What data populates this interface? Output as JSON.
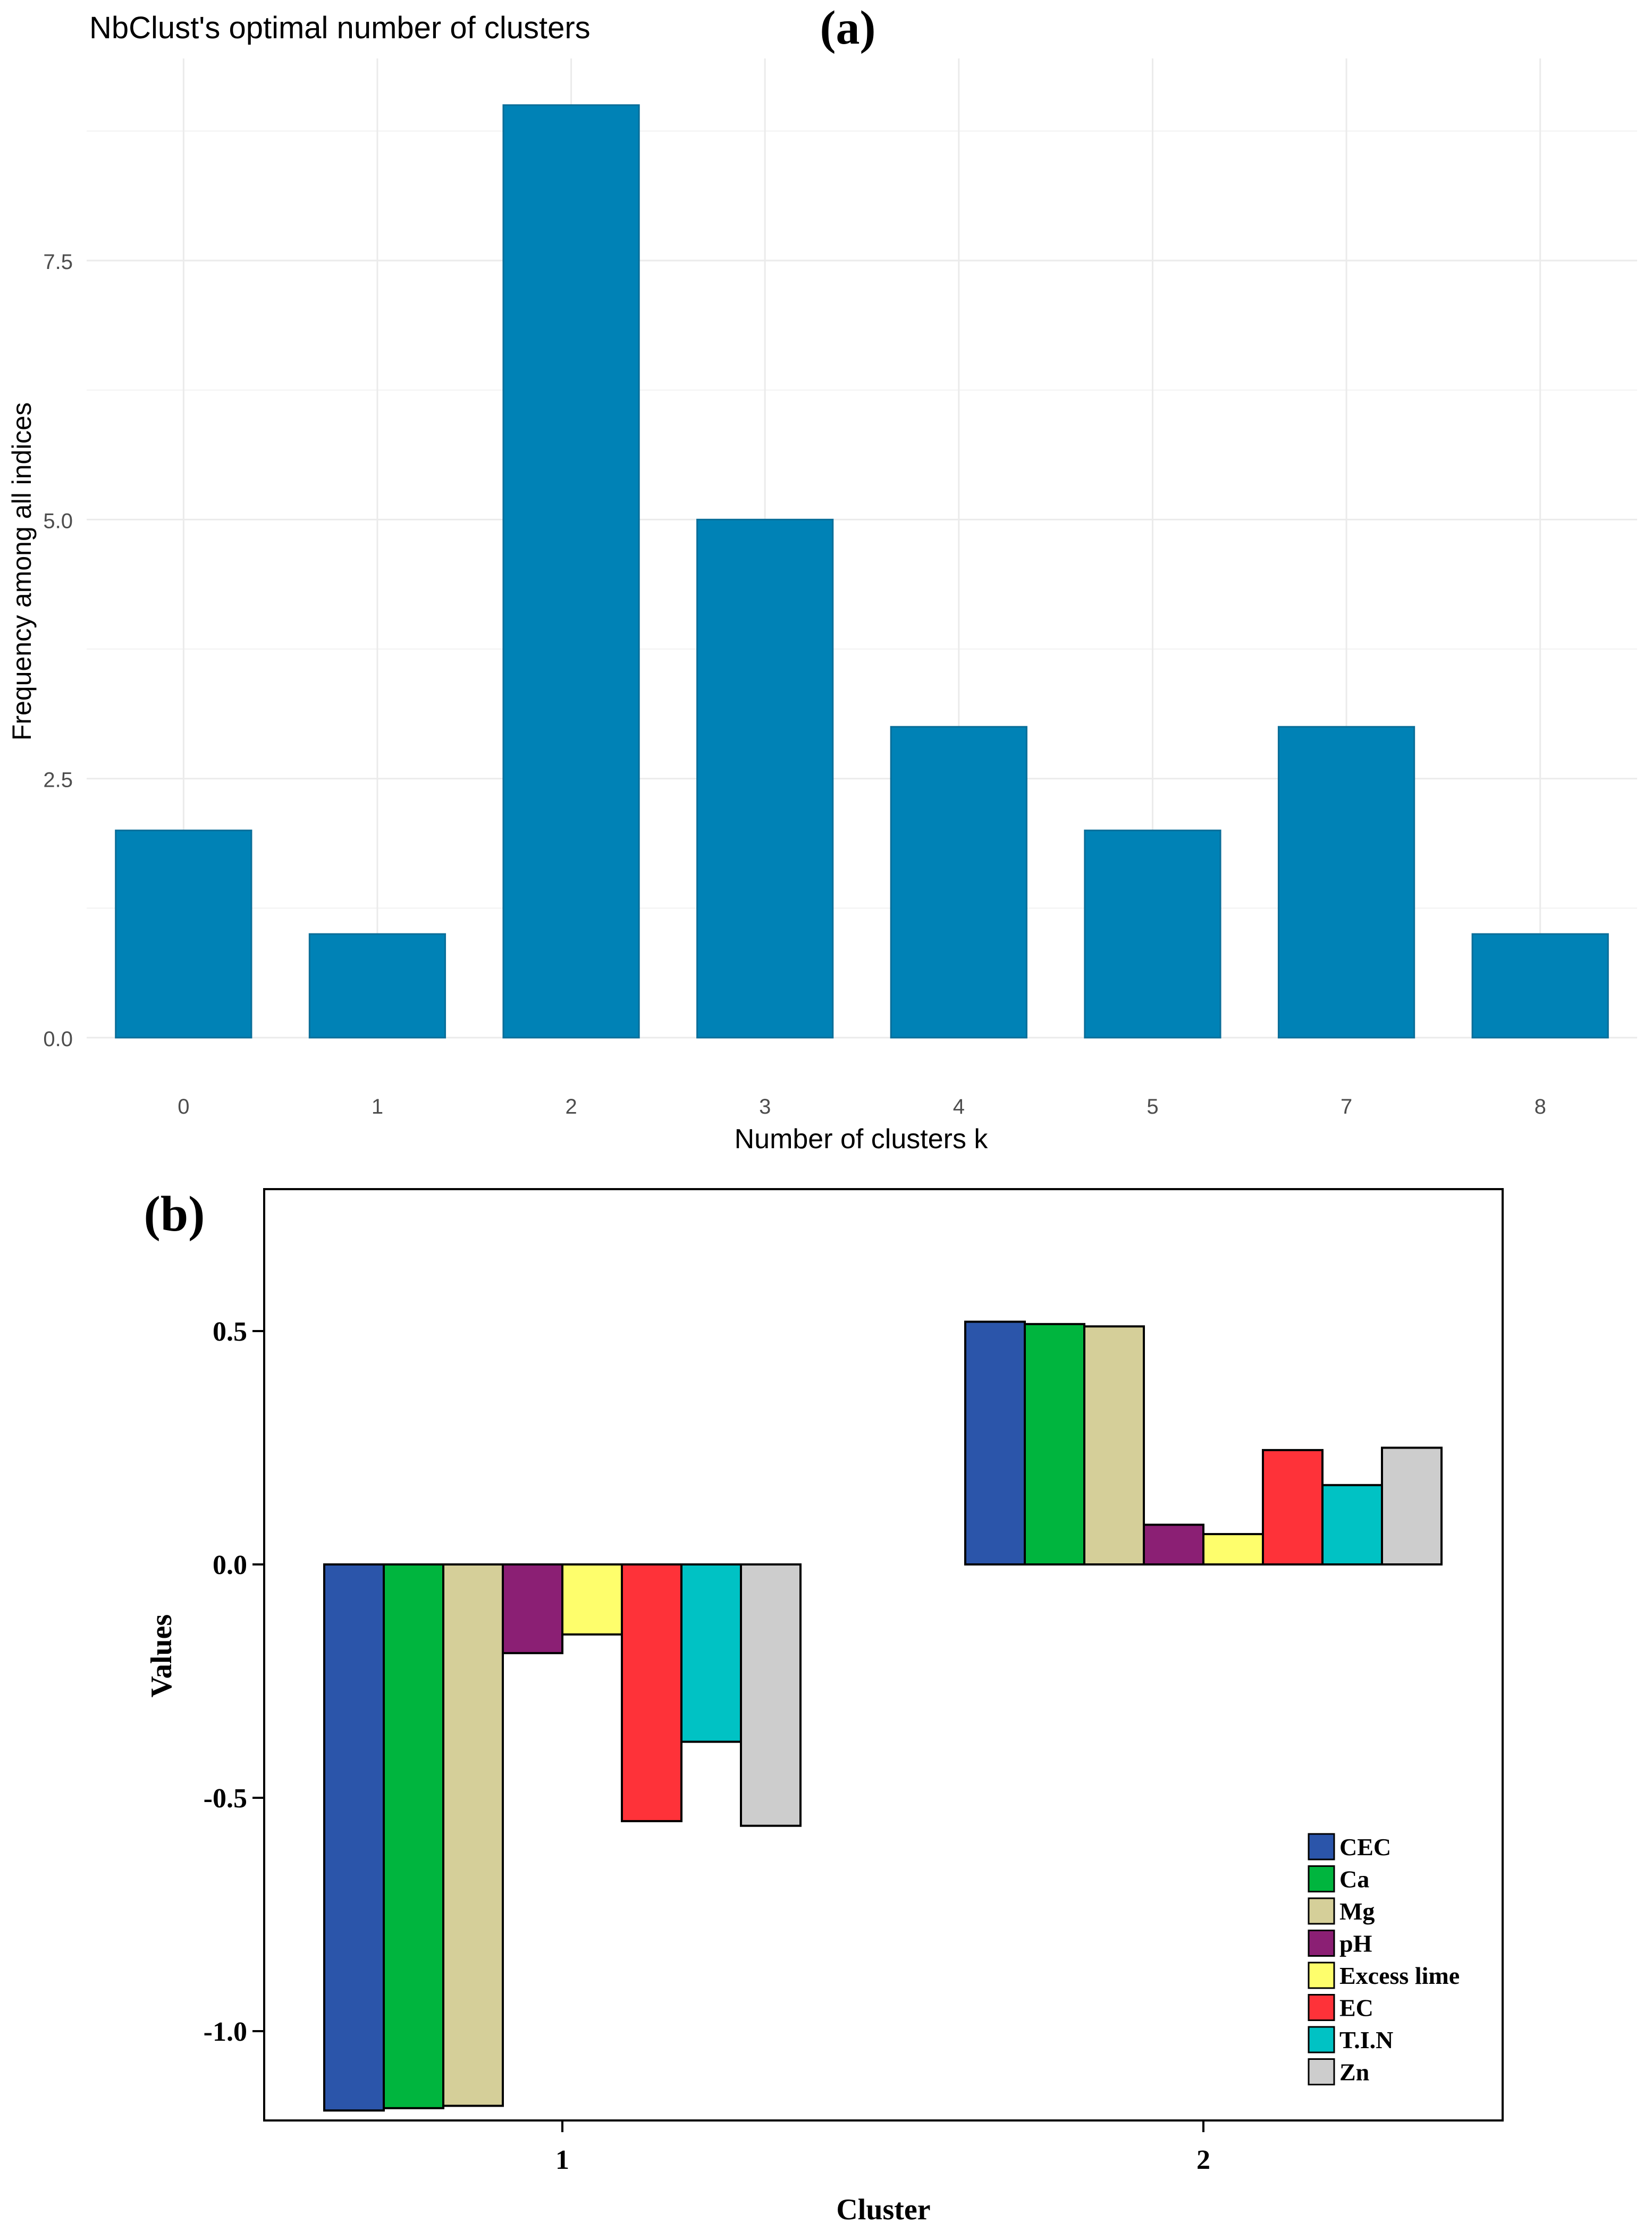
{
  "chart_data": [
    {
      "type": "bar",
      "panel_label": "(a)",
      "title": "NbClust's optimal number of clusters",
      "xlabel": "Number of clusters k",
      "ylabel": "Frequency among all indices",
      "categories": [
        "0",
        "1",
        "2",
        "3",
        "4",
        "5",
        "7",
        "8"
      ],
      "values": [
        2,
        1,
        9,
        5,
        3,
        2,
        3,
        1
      ],
      "ylim": [
        0,
        9.45
      ],
      "yticks": [
        0,
        2.5,
        5,
        7.5
      ],
      "ytick_labels": [
        "0.0",
        "2.5",
        "5.0",
        "7.5"
      ],
      "grid": true,
      "bar_color": "#0082b6",
      "grid_color": "#ebebeb"
    },
    {
      "type": "bar",
      "panel_label": "(b)",
      "xlabel": "Cluster",
      "ylabel": "Values",
      "categories": [
        "1",
        "2"
      ],
      "series": [
        {
          "name": "CEC",
          "color": "#2b55aa",
          "values": [
            -1.17,
            0.52
          ]
        },
        {
          "name": "Ca",
          "color": "#00b53e",
          "values": [
            -1.165,
            0.515
          ]
        },
        {
          "name": "Mg",
          "color": "#d5cf99",
          "values": [
            -1.16,
            0.51
          ]
        },
        {
          "name": "pH",
          "color": "#8b1f74",
          "values": [
            -0.19,
            0.085
          ]
        },
        {
          "name": "Excess lime",
          "color": "#fefe6c",
          "values": [
            -0.15,
            0.065
          ]
        },
        {
          "name": "EC",
          "color": "#fe3239",
          "values": [
            -0.55,
            0.245
          ]
        },
        {
          "name": "T.I.N",
          "color": "#00c2c4",
          "values": [
            -0.38,
            0.17
          ]
        },
        {
          "name": "Zn",
          "color": "#cdcdcd",
          "values": [
            -0.56,
            0.25
          ]
        }
      ],
      "ylim": [
        -1.2,
        0.8
      ],
      "yticks": [
        -1.0,
        -0.5,
        0.0,
        0.5
      ],
      "ytick_labels": [
        "-1.0",
        "-0.5",
        "0.0",
        "0.5"
      ],
      "legend_position": "bottom-right",
      "grid": false
    }
  ]
}
